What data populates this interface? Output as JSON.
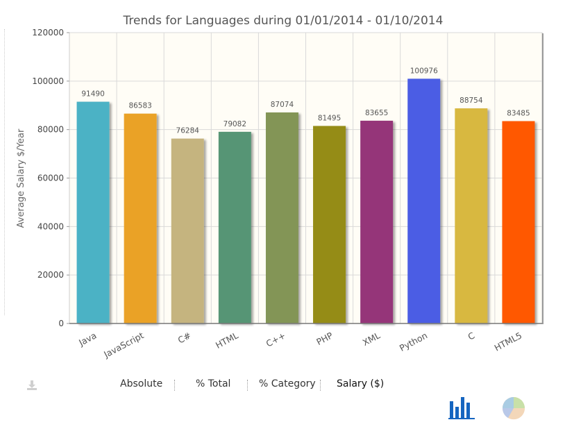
{
  "chart_data": {
    "type": "bar",
    "title": "Trends for Languages during 01/01/2014 - 01/10/2014",
    "ylabel": "Average Salary $/Year",
    "xlabel": "",
    "ylim": [
      0,
      120000
    ],
    "yticks": [
      0,
      20000,
      40000,
      60000,
      80000,
      100000,
      120000
    ],
    "grid": true,
    "categories": [
      "Java",
      "JavaScript",
      "C#",
      "HTML",
      "C++",
      "PHP",
      "XML",
      "Python",
      "C",
      "HTML5"
    ],
    "values": [
      91490,
      86583,
      76284,
      79082,
      87074,
      81495,
      83655,
      100976,
      88754,
      83485
    ],
    "colors": [
      "#4bb2c5",
      "#eaa228",
      "#c5b47f",
      "#579575",
      "#839557",
      "#958c12",
      "#953579",
      "#4b5de4",
      "#d8b83f",
      "#ff5800"
    ]
  },
  "controls": {
    "download_icon": "download-icon",
    "buttons": [
      {
        "label": "Absolute"
      },
      {
        "label": "% Total"
      },
      {
        "label": "% Category"
      },
      {
        "label": "Salary ($)"
      }
    ],
    "bar_chart_icon": "bar-chart-icon",
    "pie_chart_icon": "pie-chart-icon"
  }
}
